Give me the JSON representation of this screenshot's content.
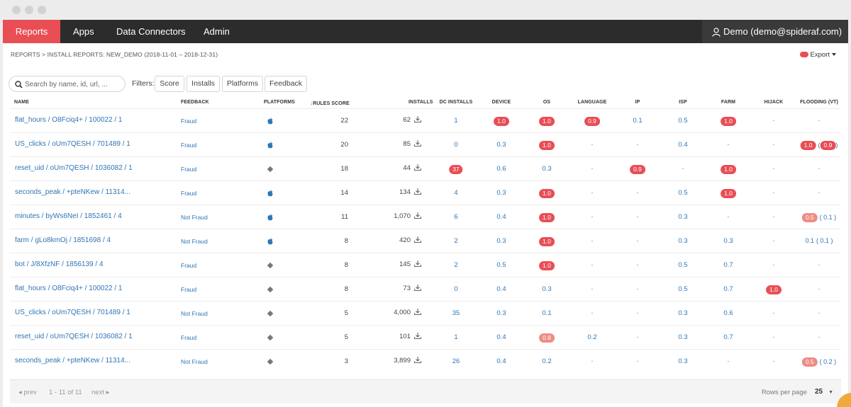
{
  "nav": {
    "items": [
      "Reports",
      "Apps",
      "Data Connectors",
      "Admin"
    ],
    "user": "Demo (demo@spideraf.com)"
  },
  "breadcrumb": "REPORTS > INSTALL REPORTS: NEW_DEMO (2018-11-01 – 2018-12-31)",
  "export_label": "Export",
  "search": {
    "placeholder": "Search by name, id, url, ..."
  },
  "filters": {
    "label": "Filters:",
    "buttons": [
      "Score",
      "Installs",
      "Platforms",
      "Feedback"
    ]
  },
  "columns": [
    "NAME",
    "FEEDBACK",
    "PLATFORMS",
    "RULES SCORE",
    "INSTALLS",
    "DC INSTALLS",
    "DEVICE",
    "OS",
    "LANGUAGE",
    "IP",
    "ISP",
    "FARM",
    "HIJACK",
    "FLOODING (VT)"
  ],
  "rows": [
    {
      "name": "flat_hours / O8Fciq4+ / 100022 / 1",
      "feedback": "Fraud",
      "platform": "apple",
      "score": "22",
      "installs": "62",
      "dc": "1",
      "device": {
        "v": "1.0",
        "pill": true
      },
      "os": {
        "v": "1.0",
        "pill": true
      },
      "language": {
        "v": "0.9",
        "pill": true
      },
      "ip": {
        "v": "0.1"
      },
      "isp": {
        "v": "0.5"
      },
      "farm": {
        "v": "1.0",
        "pill": true
      },
      "hijack": {
        "v": "-"
      },
      "flooding": [
        {
          "v": "-"
        }
      ]
    },
    {
      "name": "US_clicks / oUm7QESH / 701489 / 1",
      "feedback": "Fraud",
      "platform": "apple",
      "score": "20",
      "installs": "85",
      "dc": "0",
      "device": {
        "v": "0.3"
      },
      "os": {
        "v": "1.0",
        "pill": true
      },
      "language": {
        "v": "-"
      },
      "ip": {
        "v": "-"
      },
      "isp": {
        "v": "0.4"
      },
      "farm": {
        "v": "-"
      },
      "hijack": {
        "v": "-"
      },
      "flooding": [
        {
          "v": "1.0",
          "pill": true
        },
        {
          "v": "0.9",
          "pill": true,
          "paren": true
        }
      ]
    },
    {
      "name": "reset_uid / oUm7QESH / 1036082 / 1",
      "feedback": "Fraud",
      "platform": "android",
      "score": "18",
      "installs": "44",
      "dc": {
        "v": "37",
        "pill": true
      },
      "device": {
        "v": "0.6"
      },
      "os": {
        "v": "0.3"
      },
      "language": {
        "v": "-"
      },
      "ip": {
        "v": "0.9",
        "pill": true
      },
      "isp": {
        "v": "-"
      },
      "farm": {
        "v": "1.0",
        "pill": true
      },
      "hijack": {
        "v": "-"
      },
      "flooding": [
        {
          "v": "-"
        }
      ]
    },
    {
      "name": "seconds_peak / +pteNKew / 11314...",
      "feedback": "Fraud",
      "platform": "apple",
      "score": "14",
      "installs": "134",
      "dc": "4",
      "device": {
        "v": "0.3"
      },
      "os": {
        "v": "1.0",
        "pill": true
      },
      "language": {
        "v": "-"
      },
      "ip": {
        "v": "-"
      },
      "isp": {
        "v": "0.5"
      },
      "farm": {
        "v": "1.0",
        "pill": true
      },
      "hijack": {
        "v": "-"
      },
      "flooding": [
        {
          "v": "-"
        }
      ]
    },
    {
      "name": "minutes / byWs6NeI / 1852461 / 4",
      "feedback": "Not Fraud",
      "platform": "apple",
      "score": "11",
      "installs": "1,070",
      "dc": "6",
      "device": {
        "v": "0.4"
      },
      "os": {
        "v": "1.0",
        "pill": true
      },
      "language": {
        "v": "-"
      },
      "ip": {
        "v": "-"
      },
      "isp": {
        "v": "0.3"
      },
      "farm": {
        "v": "-"
      },
      "hijack": {
        "v": "-"
      },
      "flooding": [
        {
          "v": "0.5",
          "pill": true,
          "light": true
        },
        {
          "v": "( 0.1 )"
        }
      ]
    },
    {
      "name": "farm / gLo8kmOj / 1851698 / 4",
      "feedback": "Not Fraud",
      "platform": "apple",
      "score": "8",
      "installs": "420",
      "dc": "2",
      "device": {
        "v": "0.3"
      },
      "os": {
        "v": "1.0",
        "pill": true
      },
      "language": {
        "v": "-"
      },
      "ip": {
        "v": "-"
      },
      "isp": {
        "v": "0.3"
      },
      "farm": {
        "v": "0.3"
      },
      "hijack": {
        "v": "-"
      },
      "flooding": [
        {
          "v": "0.1"
        },
        {
          "v": "( 0.1 )"
        }
      ]
    },
    {
      "name": "bot / J/8XfzNF / 1856139 / 4",
      "feedback": "Fraud",
      "platform": "android",
      "score": "8",
      "installs": "145",
      "dc": "2",
      "device": {
        "v": "0.5"
      },
      "os": {
        "v": "1.0",
        "pill": true
      },
      "language": {
        "v": "-"
      },
      "ip": {
        "v": "-"
      },
      "isp": {
        "v": "0.5"
      },
      "farm": {
        "v": "0.7"
      },
      "hijack": {
        "v": "-"
      },
      "flooding": [
        {
          "v": "-"
        }
      ]
    },
    {
      "name": "flat_hours / O8Fciq4+ / 100022 / 1",
      "feedback": "Fraud",
      "platform": "android",
      "score": "8",
      "installs": "73",
      "dc": "0",
      "device": {
        "v": "0.4"
      },
      "os": {
        "v": "0.3"
      },
      "language": {
        "v": "-"
      },
      "ip": {
        "v": "-"
      },
      "isp": {
        "v": "0.5"
      },
      "farm": {
        "v": "0.7"
      },
      "hijack": {
        "v": "1.0",
        "pill": true
      },
      "flooding": [
        {
          "v": "-"
        }
      ]
    },
    {
      "name": "US_clicks / oUm7QESH / 701489 / 1",
      "feedback": "Not Fraud",
      "platform": "android",
      "score": "5",
      "installs": "4,000",
      "dc": "35",
      "device": {
        "v": "0.3"
      },
      "os": {
        "v": "0.1"
      },
      "language": {
        "v": "-"
      },
      "ip": {
        "v": "-"
      },
      "isp": {
        "v": "0.3"
      },
      "farm": {
        "v": "0.6"
      },
      "hijack": {
        "v": "-"
      },
      "flooding": [
        {
          "v": "-"
        }
      ]
    },
    {
      "name": "reset_uid / oUm7QESH / 1036082 / 1",
      "feedback": "Fraud",
      "platform": "android",
      "score": "5",
      "installs": "101",
      "dc": "1",
      "device": {
        "v": "0.4"
      },
      "os": {
        "v": "0.8",
        "pill": true,
        "light": true
      },
      "language": {
        "v": "0.2"
      },
      "ip": {
        "v": "-"
      },
      "isp": {
        "v": "0.3"
      },
      "farm": {
        "v": "0.7"
      },
      "hijack": {
        "v": "-"
      },
      "flooding": [
        {
          "v": "-"
        }
      ]
    },
    {
      "name": "seconds_peak / +pteNKew / 11314...",
      "feedback": "Not Fraud",
      "platform": "android",
      "score": "3",
      "installs": "3,899",
      "dc": "26",
      "device": {
        "v": "0.4"
      },
      "os": {
        "v": "0.2"
      },
      "language": {
        "v": "-"
      },
      "ip": {
        "v": "-"
      },
      "isp": {
        "v": "0.3"
      },
      "farm": {
        "v": "-"
      },
      "hijack": {
        "v": "-"
      },
      "flooding": [
        {
          "v": "0.5",
          "pill": true,
          "light": true
        },
        {
          "v": "( 0.2 )"
        }
      ]
    }
  ],
  "footer": {
    "prev": "prev",
    "range": "1 - 11 of 11",
    "next": "next",
    "rows_label": "Rows per page",
    "rows_value": "25"
  },
  "colors": {
    "accent": "#e94e55",
    "link": "#2f75b5",
    "nav_bg": "#2c2c2c"
  }
}
